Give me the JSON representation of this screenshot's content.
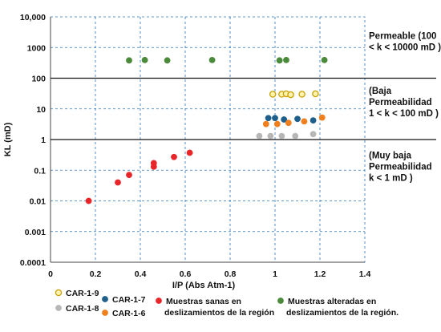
{
  "chart_data": {
    "type": "scatter",
    "title": "",
    "xlabel": "I/P (Abs Atm-1)",
    "ylabel": "KL (mD)",
    "xlim": [
      0,
      1.4
    ],
    "ylim": [
      0.0001,
      10000
    ],
    "yscale": "log",
    "grid": true,
    "x_ticks": [
      0,
      0.2,
      0.4,
      0.6,
      0.8,
      1,
      1.2,
      1.4
    ],
    "x_tick_labels": [
      "0",
      "0.2",
      "0.4",
      "0.6",
      "0.8",
      "1",
      "1.2",
      "1.4"
    ],
    "y_ticks": [
      0.0001,
      0.001,
      0.01,
      0.1,
      1,
      10,
      100,
      1000,
      10000
    ],
    "y_tick_labels": [
      "0.0001",
      "0.001",
      "0.01",
      "0.1",
      "1",
      "10",
      "100",
      "1000",
      "10,000"
    ],
    "reference_lines": [
      1,
      100
    ],
    "zones": [
      {
        "lines": [
          "Permeable (100",
          "< k < 10000 mD )"
        ]
      },
      {
        "lines": [
          "(Baja",
          "Permeabilidad",
          "1 < k < 100 mD )"
        ]
      },
      {
        "lines": [
          "(Muy baja",
          "Permeabilidad",
          "k < 1 mD )"
        ]
      }
    ],
    "series": [
      {
        "name": "CAR-1-9",
        "color": "#FFD21F",
        "stroke": "#C9A100",
        "hollow": true,
        "x": [
          0.99,
          1.03,
          1.05,
          1.07,
          1.12,
          1.18
        ],
        "y": [
          30,
          30,
          31,
          29,
          30,
          31
        ]
      },
      {
        "name": "CAR-1-7",
        "color": "#1F5F8B",
        "stroke": "#1F5F8B",
        "hollow": false,
        "x": [
          0.97,
          1.0,
          1.04,
          1.1,
          1.17
        ],
        "y": [
          5,
          5,
          4.5,
          4.7,
          4.2
        ]
      },
      {
        "name": "CAR-1-6",
        "color": "#F07F1E",
        "stroke": "#F07F1E",
        "hollow": false,
        "x": [
          0.96,
          1.01,
          1.06,
          1.13,
          1.21
        ],
        "y": [
          3.2,
          3.2,
          3.5,
          3.9,
          5.2
        ]
      },
      {
        "name": "CAR-1-8",
        "color": "#B7B7B7",
        "stroke": "#B7B7B7",
        "hollow": false,
        "x": [
          0.93,
          0.98,
          1.03,
          1.09,
          1.17
        ],
        "y": [
          1.3,
          1.3,
          1.3,
          1.3,
          1.5
        ]
      },
      {
        "name": "Muestras sanas en deslizamientos de la región",
        "color": "#E8262A",
        "stroke": "#E8262A",
        "hollow": false,
        "x": [
          0.17,
          0.3,
          0.35,
          0.46,
          0.46,
          0.55,
          0.62
        ],
        "y": [
          0.01,
          0.04,
          0.07,
          0.13,
          0.17,
          0.27,
          0.37
        ]
      },
      {
        "name": "Muestras alteradas en deslizamientos de la región.",
        "color": "#4A8A3A",
        "stroke": "#4A8A3A",
        "hollow": false,
        "x": [
          0.35,
          0.42,
          0.52,
          0.72,
          1.02,
          1.05,
          1.22
        ],
        "y": [
          380,
          390,
          380,
          390,
          380,
          390,
          390
        ]
      }
    ],
    "legend": {
      "placement": "bottom",
      "columns": [
        {
          "entries": [
            0,
            3
          ]
        },
        {
          "entries": [
            1,
            2
          ]
        },
        {
          "entries": [
            4
          ]
        },
        {
          "entries": [
            5
          ]
        }
      ]
    }
  }
}
